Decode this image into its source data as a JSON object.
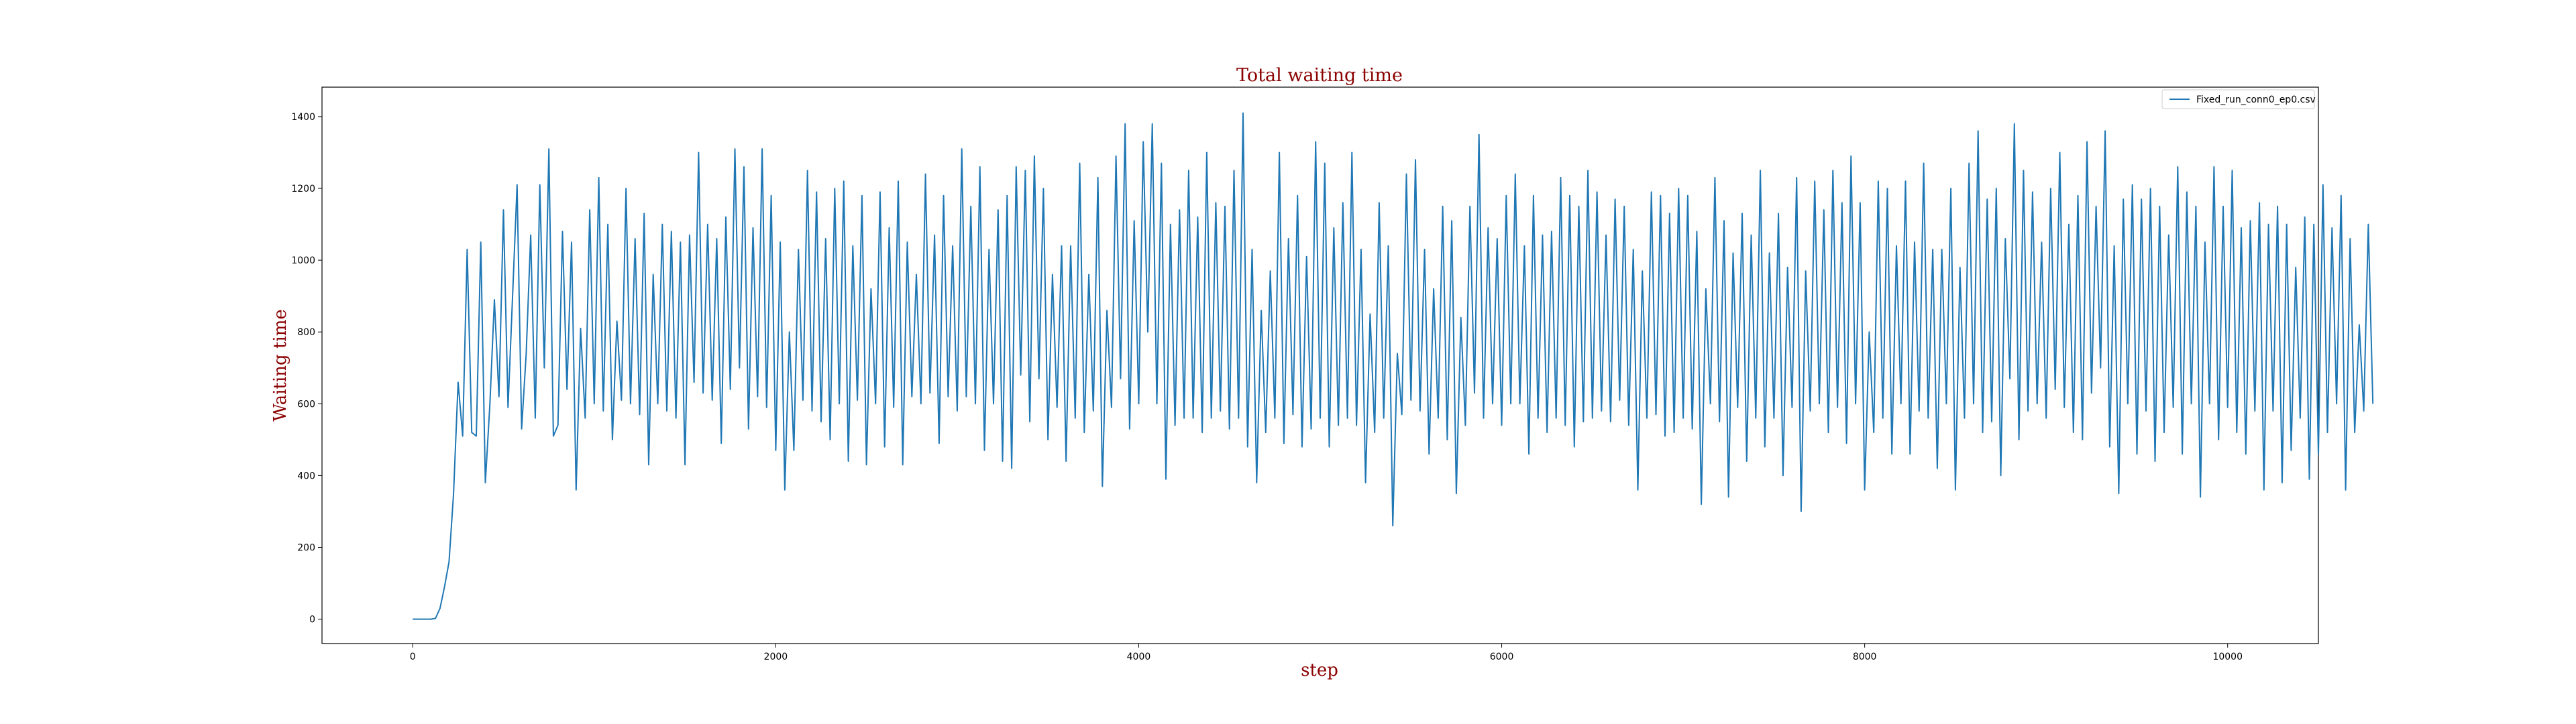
{
  "chart_data": {
    "type": "line",
    "title": "Total waiting time",
    "xlabel": "step",
    "ylabel": "Waiting time",
    "xlim": [
      -500,
      10500
    ],
    "ylim": [
      -68,
      1482
    ],
    "x_ticks": [
      0,
      2000,
      4000,
      6000,
      8000,
      10000
    ],
    "y_ticks": [
      0,
      200,
      400,
      600,
      800,
      1000,
      1200,
      1400
    ],
    "grid": false,
    "legend_position": "top-right",
    "title_color": "#8b0000",
    "label_color": "#8b0000",
    "series": [
      {
        "name": "Fixed_run_conn0_ep0.csv",
        "color": "#1f77b4",
        "x_step": 25,
        "values": [
          0,
          0,
          0,
          0,
          0,
          2,
          30,
          90,
          160,
          350,
          660,
          510,
          1030,
          520,
          510,
          1050,
          380,
          600,
          890,
          620,
          1140,
          590,
          900,
          1210,
          530,
          740,
          1070,
          560,
          1210,
          700,
          1310,
          510,
          540,
          1080,
          640,
          1050,
          360,
          810,
          560,
          1140,
          600,
          1230,
          580,
          1100,
          500,
          830,
          610,
          1200,
          600,
          1060,
          570,
          1130,
          430,
          960,
          600,
          1100,
          580,
          1080,
          560,
          1050,
          430,
          1070,
          660,
          1300,
          630,
          1100,
          610,
          1060,
          490,
          1120,
          640,
          1310,
          700,
          1260,
          530,
          1090,
          620,
          1310,
          590,
          1180,
          470,
          1050,
          360,
          800,
          470,
          1030,
          610,
          1250,
          580,
          1190,
          550,
          1060,
          500,
          1200,
          600,
          1220,
          440,
          1040,
          610,
          1180,
          430,
          920,
          600,
          1190,
          480,
          1090,
          590,
          1220,
          430,
          1050,
          620,
          960,
          600,
          1240,
          630,
          1070,
          490,
          1180,
          620,
          1040,
          580,
          1310,
          620,
          1150,
          600,
          1260,
          470,
          1030,
          600,
          1140,
          440,
          1180,
          420,
          1260,
          680,
          1250,
          550,
          1290,
          670,
          1200,
          500,
          960,
          590,
          1040,
          440,
          1040,
          560,
          1270,
          520,
          960,
          580,
          1230,
          370,
          860,
          590,
          1290,
          670,
          1380,
          530,
          1110,
          600,
          1330,
          800,
          1380,
          600,
          1270,
          390,
          1100,
          540,
          1140,
          560,
          1250,
          560,
          1120,
          520,
          1300,
          560,
          1160,
          580,
          1150,
          530,
          1250,
          560,
          1410,
          480,
          1030,
          380,
          860,
          520,
          970,
          560,
          1300,
          490,
          1060,
          570,
          1180,
          480,
          1010,
          530,
          1330,
          560,
          1270,
          480,
          1090,
          540,
          1160,
          560,
          1300,
          540,
          1030,
          380,
          850,
          520,
          1160,
          560,
          1040,
          260,
          740,
          570,
          1240,
          610,
          1280,
          580,
          1030,
          460,
          920,
          560,
          1150,
          500,
          1110,
          350,
          840,
          540,
          1150,
          630,
          1350,
          560,
          1090,
          600,
          1060,
          540,
          1180,
          600,
          1240,
          600,
          1040,
          460,
          1180,
          560,
          1070,
          520,
          1080,
          560,
          1230,
          540,
          1180,
          480,
          1150,
          550,
          1250,
          560,
          1190,
          580,
          1070,
          550,
          1170,
          610,
          1150,
          540,
          1030,
          360,
          970,
          560,
          1190,
          570,
          1180,
          510,
          1130,
          520,
          1200,
          560,
          1180,
          530,
          1080,
          320,
          920,
          600,
          1230,
          550,
          1110,
          340,
          1020,
          590,
          1130,
          440,
          1070,
          560,
          1250,
          480,
          1020,
          560,
          1130,
          400,
          980,
          590,
          1230,
          300,
          970,
          580,
          1220,
          600,
          1140,
          520,
          1250,
          590,
          1160,
          490,
          1290,
          600,
          1160,
          360,
          800,
          520,
          1220,
          560,
          1200,
          460,
          1040,
          600,
          1220,
          460,
          1050,
          580,
          1270,
          560,
          1030,
          420,
          1030,
          600,
          1200,
          360,
          980,
          560,
          1270,
          600,
          1360,
          520,
          1170,
          550,
          1200,
          400,
          1060,
          670,
          1380,
          500,
          1250,
          580,
          1190,
          600,
          1050,
          560,
          1200,
          640,
          1300,
          590,
          1100,
          520,
          1180,
          500,
          1330,
          630,
          1150,
          700,
          1360,
          480,
          1040,
          350,
          1170,
          600,
          1210,
          460,
          1170,
          580,
          1200,
          440,
          1150,
          520,
          1070,
          590,
          1260,
          460,
          1190,
          600,
          1150,
          340,
          1050,
          600,
          1260,
          500,
          1150,
          590,
          1250,
          520,
          1090,
          460,
          1110,
          580,
          1160,
          360,
          1100,
          580,
          1150,
          380,
          1100,
          470,
          980,
          560,
          1120,
          390,
          1100,
          460,
          1210,
          520,
          1090,
          600,
          1180,
          360,
          1060,
          520,
          820,
          580,
          1100,
          600
        ]
      }
    ]
  }
}
